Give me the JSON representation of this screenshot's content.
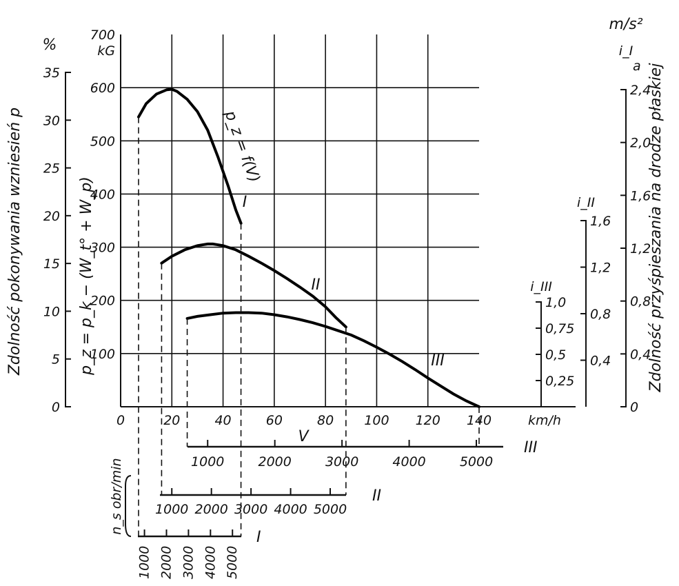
{
  "chart_data": {
    "type": "line",
    "ylabel_main": "p_z = p_k − (W_t° + W_p)",
    "yunit_main": "kG",
    "xlabel": "V",
    "xunit": "km/h",
    "x_ticks": [
      "0",
      "20",
      "40",
      "60",
      "80",
      "100",
      "120",
      "140"
    ],
    "xlim": [
      0,
      140
    ],
    "y_ticks": [
      "100",
      "200",
      "300",
      "400",
      "500",
      "600",
      "700"
    ],
    "ylim": [
      0,
      700
    ],
    "left_axis": {
      "label": "Zdolność pokonywania wzniesień p",
      "unit": "%",
      "ticks": [
        "0",
        "5",
        "10",
        "15",
        "20",
        "25",
        "30",
        "35"
      ]
    },
    "right_axes": [
      {
        "label": "i_III",
        "ticks": [
          "0,25",
          "0,5",
          "0,75",
          "1,0"
        ]
      },
      {
        "label": "i_II",
        "ticks": [
          "0,4",
          "0,8",
          "1,2",
          "1,6"
        ]
      },
      {
        "label": "i_I",
        "unit": "m/s²",
        "sub": "a",
        "ticks": [
          "0",
          "0,4",
          "0,8",
          "1,2",
          "1,6",
          "2,0",
          "2,4"
        ]
      }
    ],
    "right_title": "Zdolność przyśpieszania na drodze płaskiej",
    "curve_label": "p_z = f(V)",
    "series": [
      {
        "name": "I",
        "x": [
          7,
          10,
          14,
          18,
          20,
          22,
          26,
          30,
          34,
          38,
          42,
          45,
          47
        ],
        "y": [
          545,
          570,
          588,
          596,
          597,
          593,
          578,
          555,
          520,
          470,
          415,
          370,
          345
        ]
      },
      {
        "name": "II",
        "x": [
          16,
          20,
          25,
          30,
          34,
          36,
          40,
          45,
          50,
          55,
          60,
          65,
          70,
          75,
          80,
          84,
          88
        ],
        "y": [
          270,
          283,
          295,
          303,
          306,
          306,
          303,
          295,
          283,
          270,
          256,
          241,
          225,
          208,
          188,
          168,
          150
        ]
      },
      {
        "name": "III",
        "x": [
          26,
          30,
          35,
          40,
          45,
          50,
          55,
          60,
          65,
          70,
          75,
          80,
          85,
          90,
          95,
          100,
          105,
          110,
          115,
          120,
          125,
          130,
          135,
          140
        ],
        "y": [
          166,
          170,
          173,
          176,
          177,
          177,
          176,
          173,
          169,
          164,
          158,
          151,
          143,
          135,
          124,
          112,
          99,
          85,
          70,
          54,
          39,
          24,
          11,
          0
        ]
      }
    ],
    "rpm_axes": [
      {
        "name": "I",
        "ticks": [
          "1000",
          "2000",
          "3000",
          "4000",
          "5000"
        ]
      },
      {
        "name": "II",
        "ticks": [
          "1000",
          "2000",
          "3000",
          "4000",
          "5000"
        ]
      },
      {
        "name": "III",
        "ticks": [
          "1000",
          "2000",
          "3000",
          "4000",
          "5000"
        ]
      }
    ],
    "rpm_label": "n_s obr/min",
    "grid": true
  }
}
